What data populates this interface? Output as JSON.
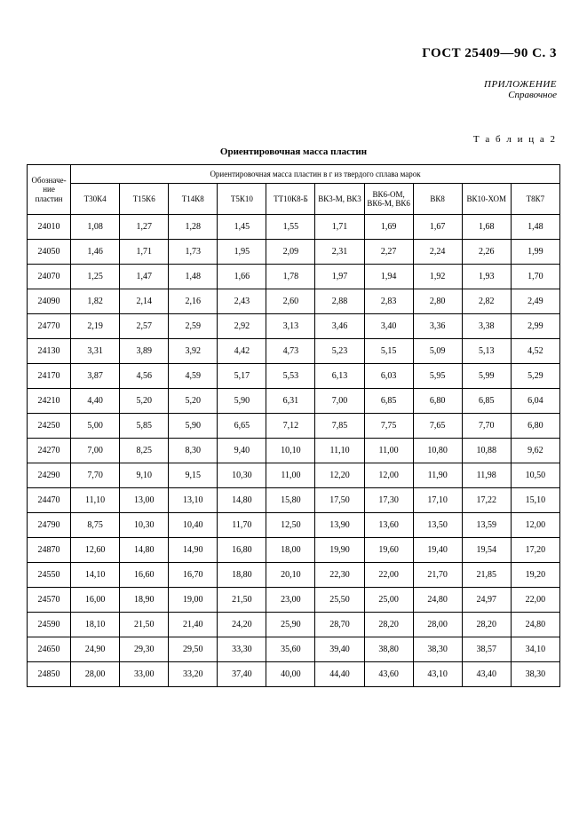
{
  "header": "ГОСТ 25409—90 С. 3",
  "appendix_line1": "ПРИЛОЖЕНИЕ",
  "appendix_line2": "Справочное",
  "table_label": "Т а б л и ц а   2",
  "table_title": "Ориентировочная масса пластин",
  "top_span_label": "Ориентировочная масса пластин в г из твердого сплава марок",
  "row_header": "Обозначе­ние пластин",
  "columns": [
    "Т30К4",
    "Т15К6",
    "Т14К8",
    "Т5К10",
    "ТТ10К8-Б",
    "ВК3-М, ВК3",
    "ВК6-ОМ, ВК6-М, ВК6",
    "ВК8",
    "ВК10-ХОМ",
    "Т8К7"
  ],
  "rows": [
    {
      "label": "24010",
      "cells": [
        "1,08",
        "1,27",
        "1,28",
        "1,45",
        "1,55",
        "1,71",
        "1,69",
        "1,67",
        "1,68",
        "1,48"
      ]
    },
    {
      "label": "24050",
      "cells": [
        "1,46",
        "1,71",
        "1,73",
        "1,95",
        "2,09",
        "2,31",
        "2,27",
        "2,24",
        "2,26",
        "1,99"
      ]
    },
    {
      "label": "24070",
      "cells": [
        "1,25",
        "1,47",
        "1,48",
        "1,66",
        "1,78",
        "1,97",
        "1,94",
        "1,92",
        "1,93",
        "1,70"
      ]
    },
    {
      "label": "24090",
      "cells": [
        "1,82",
        "2,14",
        "2,16",
        "2,43",
        "2,60",
        "2,88",
        "2,83",
        "2,80",
        "2,82",
        "2,49"
      ]
    },
    {
      "label": "24770",
      "cells": [
        "2,19",
        "2,57",
        "2,59",
        "2,92",
        "3,13",
        "3,46",
        "3,40",
        "3,36",
        "3,38",
        "2,99"
      ]
    },
    {
      "label": "24130",
      "cells": [
        "3,31",
        "3,89",
        "3,92",
        "4,42",
        "4,73",
        "5,23",
        "5,15",
        "5,09",
        "5,13",
        "4,52"
      ]
    },
    {
      "label": "24170",
      "cells": [
        "3,87",
        "4,56",
        "4,59",
        "5,17",
        "5,53",
        "6,13",
        "6,03",
        "5,95",
        "5,99",
        "5,29"
      ]
    },
    {
      "label": "24210",
      "cells": [
        "4,40",
        "5,20",
        "5,20",
        "5,90",
        "6,31",
        "7,00",
        "6,85",
        "6,80",
        "6,85",
        "6,04"
      ]
    },
    {
      "label": "24250",
      "cells": [
        "5,00",
        "5,85",
        "5,90",
        "6,65",
        "7,12",
        "7,85",
        "7,75",
        "7,65",
        "7,70",
        "6,80"
      ]
    },
    {
      "label": "24270",
      "cells": [
        "7,00",
        "8,25",
        "8,30",
        "9,40",
        "10,10",
        "11,10",
        "11,00",
        "10,80",
        "10,88",
        "9,62"
      ]
    },
    {
      "label": "24290",
      "cells": [
        "7,70",
        "9,10",
        "9,15",
        "10,30",
        "11,00",
        "12,20",
        "12,00",
        "11,90",
        "11,98",
        "10,50"
      ]
    },
    {
      "label": "24470",
      "cells": [
        "11,10",
        "13,00",
        "13,10",
        "14,80",
        "15,80",
        "17,50",
        "17,30",
        "17,10",
        "17,22",
        "15,10"
      ]
    },
    {
      "label": "24790",
      "cells": [
        "8,75",
        "10,30",
        "10,40",
        "11,70",
        "12,50",
        "13,90",
        "13,60",
        "13,50",
        "13,59",
        "12,00"
      ]
    },
    {
      "label": "24870",
      "cells": [
        "12,60",
        "14,80",
        "14,90",
        "16,80",
        "18,00",
        "19,90",
        "19,60",
        "19,40",
        "19,54",
        "17,20"
      ]
    },
    {
      "label": "24550",
      "cells": [
        "14,10",
        "16,60",
        "16,70",
        "18,80",
        "20,10",
        "22,30",
        "22,00",
        "21,70",
        "21,85",
        "19,20"
      ]
    },
    {
      "label": "24570",
      "cells": [
        "16,00",
        "18,90",
        "19,00",
        "21,50",
        "23,00",
        "25,50",
        "25,00",
        "24,80",
        "24,97",
        "22,00"
      ]
    },
    {
      "label": "24590",
      "cells": [
        "18,10",
        "21,50",
        "21,40",
        "24,20",
        "25,90",
        "28,70",
        "28,20",
        "28,00",
        "28,20",
        "24,80"
      ]
    },
    {
      "label": "24650",
      "cells": [
        "24,90",
        "29,30",
        "29,50",
        "33,30",
        "35,60",
        "39,40",
        "38,80",
        "38,30",
        "38,57",
        "34,10"
      ]
    },
    {
      "label": "24850",
      "cells": [
        "28,00",
        "33,00",
        "33,20",
        "37,40",
        "40,00",
        "44,40",
        "43,60",
        "43,10",
        "43,40",
        "38,30"
      ]
    }
  ]
}
